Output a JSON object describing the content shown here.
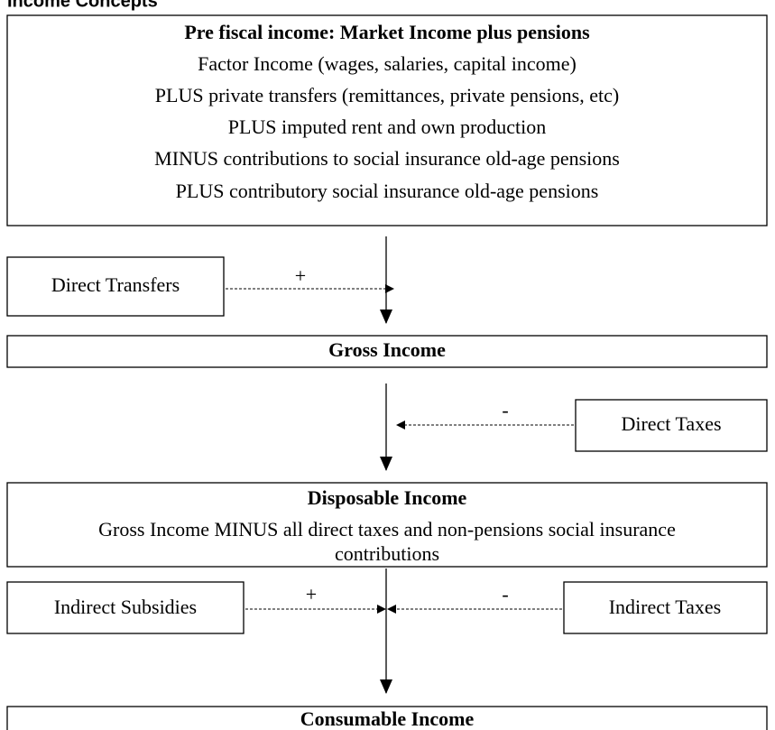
{
  "caption": "Income Concepts",
  "pre_fiscal": {
    "title": "Pre fiscal income: Market Income plus pensions",
    "lines": [
      "Factor Income (wages, salaries, capital income)",
      "PLUS private transfers (remittances, private pensions, etc)",
      "PLUS imputed rent and own production",
      "MINUS contributions to social insurance old-age pensions",
      "PLUS contributory social insurance old-age pensions"
    ]
  },
  "direct_transfers": {
    "label": "Direct Transfers",
    "sign": "+"
  },
  "gross_income": {
    "title": "Gross Income"
  },
  "direct_taxes": {
    "label": "Direct Taxes",
    "sign": "-"
  },
  "disposable_income": {
    "title": "Disposable Income",
    "lines": [
      "Gross Income MINUS all direct taxes and non-pensions social insurance",
      "contributions"
    ]
  },
  "indirect_subsidies": {
    "label": "Indirect Subsidies",
    "sign": "+"
  },
  "indirect_taxes": {
    "label": "Indirect Taxes",
    "sign": "-"
  },
  "consumable_income": {
    "title": "Consumable Income"
  }
}
